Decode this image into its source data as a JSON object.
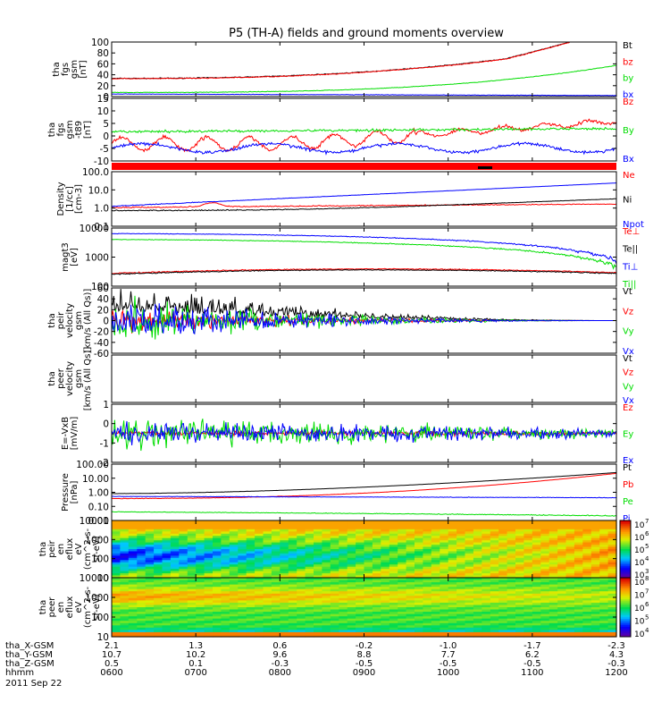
{
  "title": "P5 (TH-A) fields and ground moments overview",
  "date": "2011 Sep 22",
  "time_ticks": [
    "0600",
    "0700",
    "0800",
    "0900",
    "1000",
    "1100",
    "1200"
  ],
  "ephemeris": [
    {
      "label": "tha_X-GSM",
      "values": [
        "2.1",
        "1.3",
        "0.6",
        "-0.2",
        "-1.0",
        "-1.7",
        "-2.3"
      ]
    },
    {
      "label": "tha_Y-GSM",
      "values": [
        "10.7",
        "10.2",
        "9.6",
        "8.8",
        "7.7",
        "6.2",
        "4.3"
      ]
    },
    {
      "label": "tha_Z-GSM",
      "values": [
        "0.5",
        "0.1",
        "-0.3",
        "-0.5",
        "-0.5",
        "-0.5",
        "-0.3"
      ]
    },
    {
      "label": "hhmm",
      "values": []
    }
  ],
  "colors": {
    "black": "#000000",
    "red": "#ff0000",
    "green": "#00dd00",
    "blue": "#0000ff"
  },
  "chart_data": [
    {
      "type": "line",
      "id": "fgs_gsm",
      "ylabel": [
        "tha",
        "fgs",
        "gsm",
        "[nT]"
      ],
      "ylim": [
        -5,
        100
      ],
      "yticks": [
        "100",
        "80",
        "60",
        "40",
        "20",
        "0"
      ],
      "series": [
        {
          "name": "Bt",
          "color": "black"
        },
        {
          "name": "bz",
          "color": "red"
        },
        {
          "name": "by",
          "color": "green"
        },
        {
          "name": "bx",
          "color": "blue"
        }
      ]
    },
    {
      "type": "line",
      "id": "fgs_dsl",
      "ylabel": [
        "tha",
        "fgs",
        "gsm",
        "-t89",
        "[nT]"
      ],
      "ylim": [
        -12,
        17
      ],
      "yticks": [
        "15",
        "10",
        "5",
        "0",
        "-5",
        "-10"
      ],
      "series": [
        {
          "name": "Bz",
          "color": "red"
        },
        {
          "name": "By",
          "color": "green"
        },
        {
          "name": "Bx",
          "color": "blue"
        }
      ]
    },
    {
      "type": "line",
      "id": "density",
      "ylabel": [
        "Density",
        "[1/cc]",
        "[cm-3]"
      ],
      "yscale": "log",
      "ylim": [
        0.1,
        100
      ],
      "yticks": [
        "100.0",
        "10.0",
        "1.0",
        "0.1"
      ],
      "series": [
        {
          "name": "Ne",
          "color": "red"
        },
        {
          "name": "Ni",
          "color": "black"
        },
        {
          "name": "Npot",
          "color": "blue"
        }
      ]
    },
    {
      "type": "line",
      "id": "temp",
      "ylabel": [
        "magt3",
        "[eV]"
      ],
      "yscale": "log",
      "ylim": [
        50,
        10000
      ],
      "yticks": [
        "10000",
        "1000",
        "100"
      ],
      "series": [
        {
          "name": "Te⊥",
          "color": "red"
        },
        {
          "name": "Te||",
          "color": "black"
        },
        {
          "name": "Ti⊥",
          "color": "blue"
        },
        {
          "name": "Ti||",
          "color": "green"
        }
      ]
    },
    {
      "type": "line",
      "id": "peir_vel",
      "ylabel": [
        "tha",
        "peir",
        "velocity",
        "gsm",
        "[km/s (All Qs)]"
      ],
      "ylim": [
        -60,
        60
      ],
      "yticks": [
        "60",
        "40",
        "20",
        "0",
        "-20",
        "-40",
        "-60"
      ],
      "series": [
        {
          "name": "Vt",
          "color": "black"
        },
        {
          "name": "Vz",
          "color": "red"
        },
        {
          "name": "Vy",
          "color": "green"
        },
        {
          "name": "Vx",
          "color": "blue"
        }
      ]
    },
    {
      "type": "line",
      "id": "peer_vel",
      "ylabel": [
        "tha",
        "peer",
        "velocity",
        "gsm",
        "[km/s (All Qs)]"
      ],
      "ylim": [
        -60,
        60
      ],
      "yticks": [],
      "series": [
        {
          "name": "Vt",
          "color": "black"
        },
        {
          "name": "Vz",
          "color": "red"
        },
        {
          "name": "Vy",
          "color": "green"
        },
        {
          "name": "Vx",
          "color": "blue"
        }
      ]
    },
    {
      "type": "line",
      "id": "efield",
      "ylabel": [
        "E=-VxB",
        "[mV/m]"
      ],
      "ylim": [
        -2,
        2
      ],
      "yticks": [
        "1",
        "0",
        "-1",
        "-2"
      ],
      "series": [
        {
          "name": "Ez",
          "color": "red"
        },
        {
          "name": "Ey",
          "color": "green"
        },
        {
          "name": "Ex",
          "color": "blue"
        }
      ]
    },
    {
      "type": "line",
      "id": "pressure",
      "ylabel": [
        "Pressure",
        "[nPa]"
      ],
      "yscale": "log",
      "ylim": [
        0.01,
        100
      ],
      "yticks": [
        "100.00",
        "10.00",
        "1.00",
        "0.10",
        "0.01"
      ],
      "series": [
        {
          "name": "Pt",
          "color": "black"
        },
        {
          "name": "Pb",
          "color": "red"
        },
        {
          "name": "Pe",
          "color": "green"
        },
        {
          "name": "Pi",
          "color": "blue"
        }
      ]
    },
    {
      "type": "heatmap",
      "id": "peir_spec",
      "ylabel": [
        "tha",
        "peir",
        "en",
        "eflux",
        "eV",
        "(cm^2-s-",
        "sr-eV)"
      ],
      "yscale": "log",
      "ylim": [
        7,
        20000
      ],
      "yticks": [
        "10000",
        "1000",
        "100",
        "10"
      ]
    },
    {
      "type": "heatmap",
      "id": "peer_spec",
      "ylabel": [
        "tha",
        "peer",
        "en",
        "eflux",
        "eV",
        "(cm^2-s-",
        "sr-eV)"
      ],
      "yscale": "log",
      "ylim": [
        7,
        20000
      ],
      "yticks": [
        "10000",
        "1000",
        "100",
        "10"
      ]
    }
  ],
  "colorbar_top": [
    "10",
    "10",
    "10",
    "10",
    "10"
  ],
  "colorbar_top_exp": [
    "7",
    "6",
    "5",
    "4",
    "3"
  ],
  "colorbar_bottom": [
    "10",
    "10",
    "10",
    "10",
    "10"
  ],
  "colorbar_bottom_exp": [
    "8",
    "7",
    "6",
    "5",
    "4"
  ]
}
